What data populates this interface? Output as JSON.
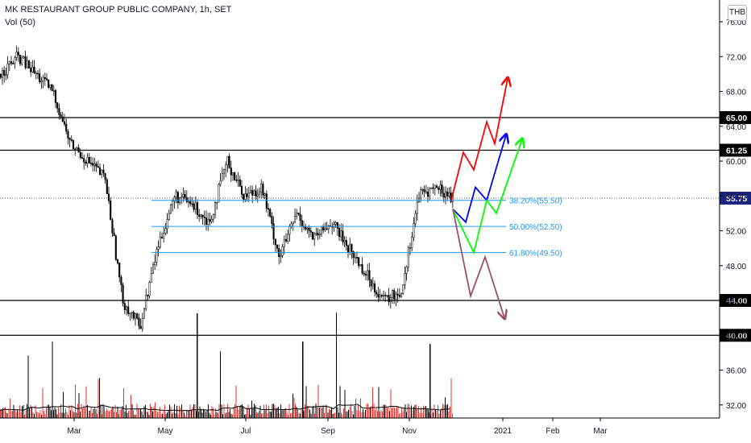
{
  "header": {
    "title": "MK RESTAURANT GROUP PUBLIC COMPANY, 1h, SET",
    "indicator": "Vol (50)",
    "currency": "THB"
  },
  "colors": {
    "candle_up": "#000000",
    "candle_down": "#000000",
    "volume_up": "#000000",
    "volume_down": "#e53935",
    "volume_ma": "#000000",
    "horizontal_level": "#000000",
    "fib_line": "#2196f3",
    "fib_text": "#2196f3",
    "current_price_bg": "#1a237e",
    "level_label_bg": "#000000",
    "arrow_red": "#ff0000",
    "arrow_blue": "#0000ff",
    "arrow_green": "#00ff00",
    "arrow_mauve": "#9c4f6b",
    "dotted_price_line": "#1a237e"
  },
  "chart_data": {
    "type": "candlestick",
    "price_axis": {
      "ticks": [
        "76.00",
        "72.00",
        "68.00",
        "64.00",
        "60.00",
        "56.00",
        "52.00",
        "48.00",
        "44.00",
        "40.00",
        "36.00",
        "32.00"
      ],
      "ylim": [
        30.5,
        78.5
      ]
    },
    "time_axis": {
      "labels": [
        "Mar",
        "May",
        "Jul",
        "Sep",
        "Nov",
        "2021",
        "Feb",
        "Mar"
      ]
    },
    "price_path": [
      {
        "t": "Jan",
        "p": 70
      },
      {
        "t": "Jan",
        "p": 72
      },
      {
        "t": "Feb",
        "p": 70
      },
      {
        "t": "Feb",
        "p": 68
      },
      {
        "t": "Feb",
        "p": 62
      },
      {
        "t": "Mar",
        "p": 60
      },
      {
        "t": "Mar",
        "p": 58
      },
      {
        "t": "Mar",
        "p": 44
      },
      {
        "t": "Mar",
        "p": 41
      },
      {
        "t": "Apr",
        "p": 50
      },
      {
        "t": "Apr",
        "p": 56
      },
      {
        "t": "May",
        "p": 55
      },
      {
        "t": "May",
        "p": 53
      },
      {
        "t": "Jun",
        "p": 60
      },
      {
        "t": "Jun",
        "p": 56
      },
      {
        "t": "Jul",
        "p": 57
      },
      {
        "t": "Jul",
        "p": 49
      },
      {
        "t": "Aug",
        "p": 54
      },
      {
        "t": "Aug",
        "p": 51
      },
      {
        "t": "Sep",
        "p": 53
      },
      {
        "t": "Sep",
        "p": 50
      },
      {
        "t": "Oct",
        "p": 47
      },
      {
        "t": "Oct",
        "p": 44
      },
      {
        "t": "Nov",
        "p": 45
      },
      {
        "t": "Nov",
        "p": 56
      },
      {
        "t": "Nov",
        "p": 57
      },
      {
        "t": "Nov",
        "p": 55.75
      }
    ],
    "levels": [
      {
        "value": 65.0,
        "label": "65.00"
      },
      {
        "value": 61.25,
        "label": "61.25"
      },
      {
        "value": 44.0,
        "label": "44.00"
      },
      {
        "value": 40.0,
        "label": "40.00"
      }
    ],
    "current_price": {
      "value": 55.75,
      "label": "55.75"
    },
    "fibonacci": [
      {
        "value": 55.5,
        "label": "38.20%(55.50)"
      },
      {
        "value": 52.5,
        "label": "50.00%(52.50)"
      },
      {
        "value": 49.5,
        "label": "61.80%(49.50)"
      }
    ],
    "scenarios": [
      {
        "color": "red",
        "path": [
          55.5,
          61,
          59,
          64.5,
          62,
          69.5
        ]
      },
      {
        "color": "blue",
        "path": [
          54.5,
          53,
          57,
          55.5,
          63
        ]
      },
      {
        "color": "green",
        "path": [
          54.5,
          49.5,
          55.5,
          54,
          62.5
        ]
      },
      {
        "color": "mauve",
        "path": [
          54.5,
          44.5,
          49,
          42
        ]
      }
    ]
  }
}
